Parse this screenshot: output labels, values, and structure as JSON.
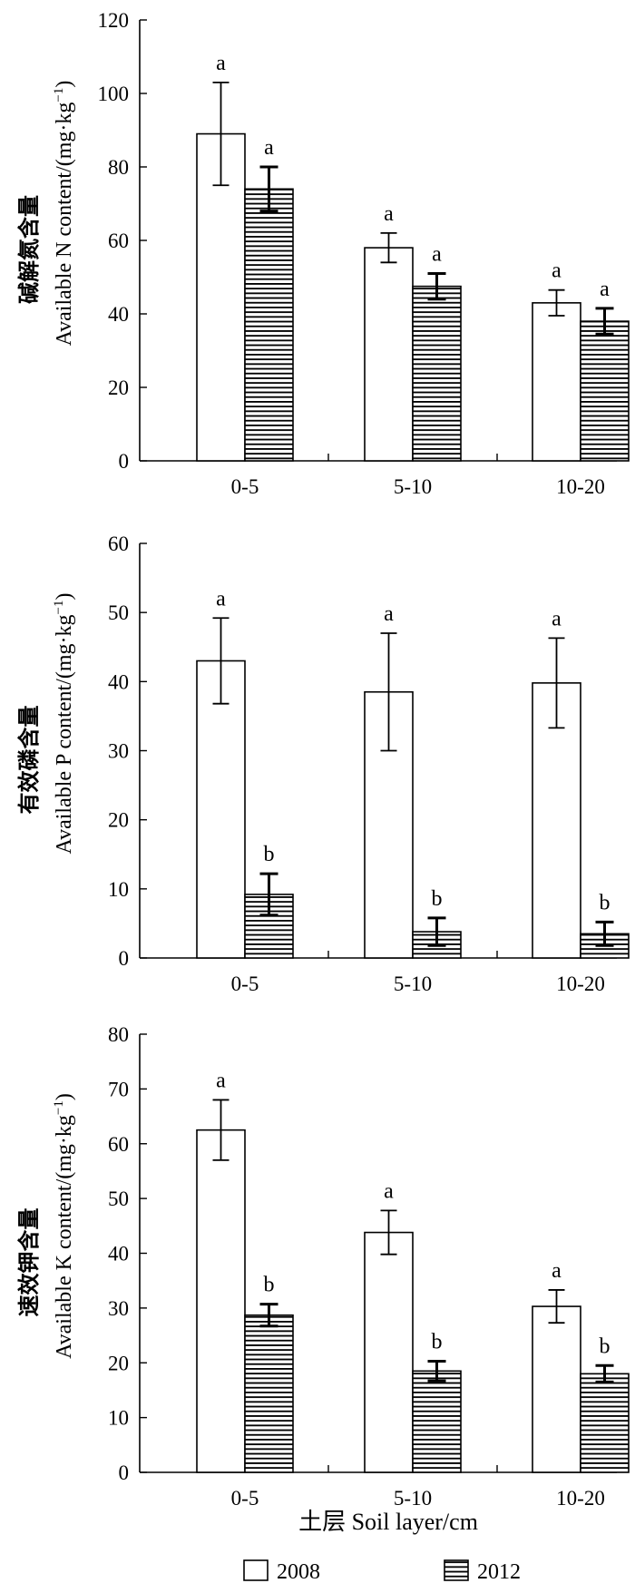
{
  "charts": [
    {
      "type": "bar",
      "ylabel_cn": "碱解氮含量",
      "ylabel_en": "Available N content/(mg·kg",
      "ylabel_unit_sup": "−1",
      "ylabel_close": ")",
      "categories": [
        "0-5",
        "5-10",
        "10-20"
      ],
      "ylim": [
        0,
        120
      ],
      "yticks": [
        "0",
        "20",
        "40",
        "60",
        "80",
        "100",
        "120"
      ],
      "series": [
        {
          "name": "2008",
          "values": [
            89,
            58,
            43
          ],
          "errors": [
            14,
            4,
            3.5
          ],
          "letters": [
            "a",
            "a",
            "a"
          ]
        },
        {
          "name": "2012",
          "values": [
            74,
            47.5,
            38
          ],
          "errors": [
            6,
            3.5,
            3.5
          ],
          "letters": [
            "a",
            "a",
            "a"
          ]
        }
      ]
    },
    {
      "type": "bar",
      "ylabel_cn": "有效磷含量",
      "ylabel_en": "Available P content/(mg·kg",
      "ylabel_unit_sup": "−1",
      "ylabel_close": ")",
      "categories": [
        "0-5",
        "5-10",
        "10-20"
      ],
      "ylim": [
        0,
        60
      ],
      "yticks": [
        "0",
        "10",
        "20",
        "30",
        "40",
        "50",
        "60"
      ],
      "series": [
        {
          "name": "2008",
          "values": [
            43,
            38.5,
            39.8
          ],
          "errors": [
            6.2,
            8.5,
            6.5
          ],
          "letters": [
            "a",
            "a",
            "a"
          ]
        },
        {
          "name": "2012",
          "values": [
            9.2,
            3.8,
            3.5
          ],
          "errors": [
            3,
            2,
            1.7
          ],
          "letters": [
            "b",
            "b",
            "b"
          ]
        }
      ]
    },
    {
      "type": "bar",
      "ylabel_cn": "速效钾含量",
      "ylabel_en": "Available K content/(mg·kg",
      "ylabel_unit_sup": "−1",
      "ylabel_close": ")",
      "categories": [
        "0-5",
        "5-10",
        "10-20"
      ],
      "ylim": [
        0,
        80
      ],
      "yticks": [
        "0",
        "10",
        "20",
        "30",
        "40",
        "50",
        "60",
        "70",
        "80"
      ],
      "series": [
        {
          "name": "2008",
          "values": [
            62.5,
            43.8,
            30.3
          ],
          "errors": [
            5.5,
            4,
            3
          ],
          "letters": [
            "a",
            "a",
            "a"
          ]
        },
        {
          "name": "2012",
          "values": [
            28.7,
            18.5,
            18
          ],
          "errors": [
            2,
            1.8,
            1.5
          ],
          "letters": [
            "b",
            "b",
            "b"
          ]
        }
      ]
    }
  ],
  "xlabel": "土层 Soil layer/cm",
  "legend": [
    {
      "label": "2008",
      "pattern": "open"
    },
    {
      "label": "2012",
      "pattern": "horizontal-hatch"
    }
  ],
  "colors": {
    "bar_stroke": "#000000",
    "bar_fill_2008": "#ffffff",
    "hatch": "#000000"
  }
}
